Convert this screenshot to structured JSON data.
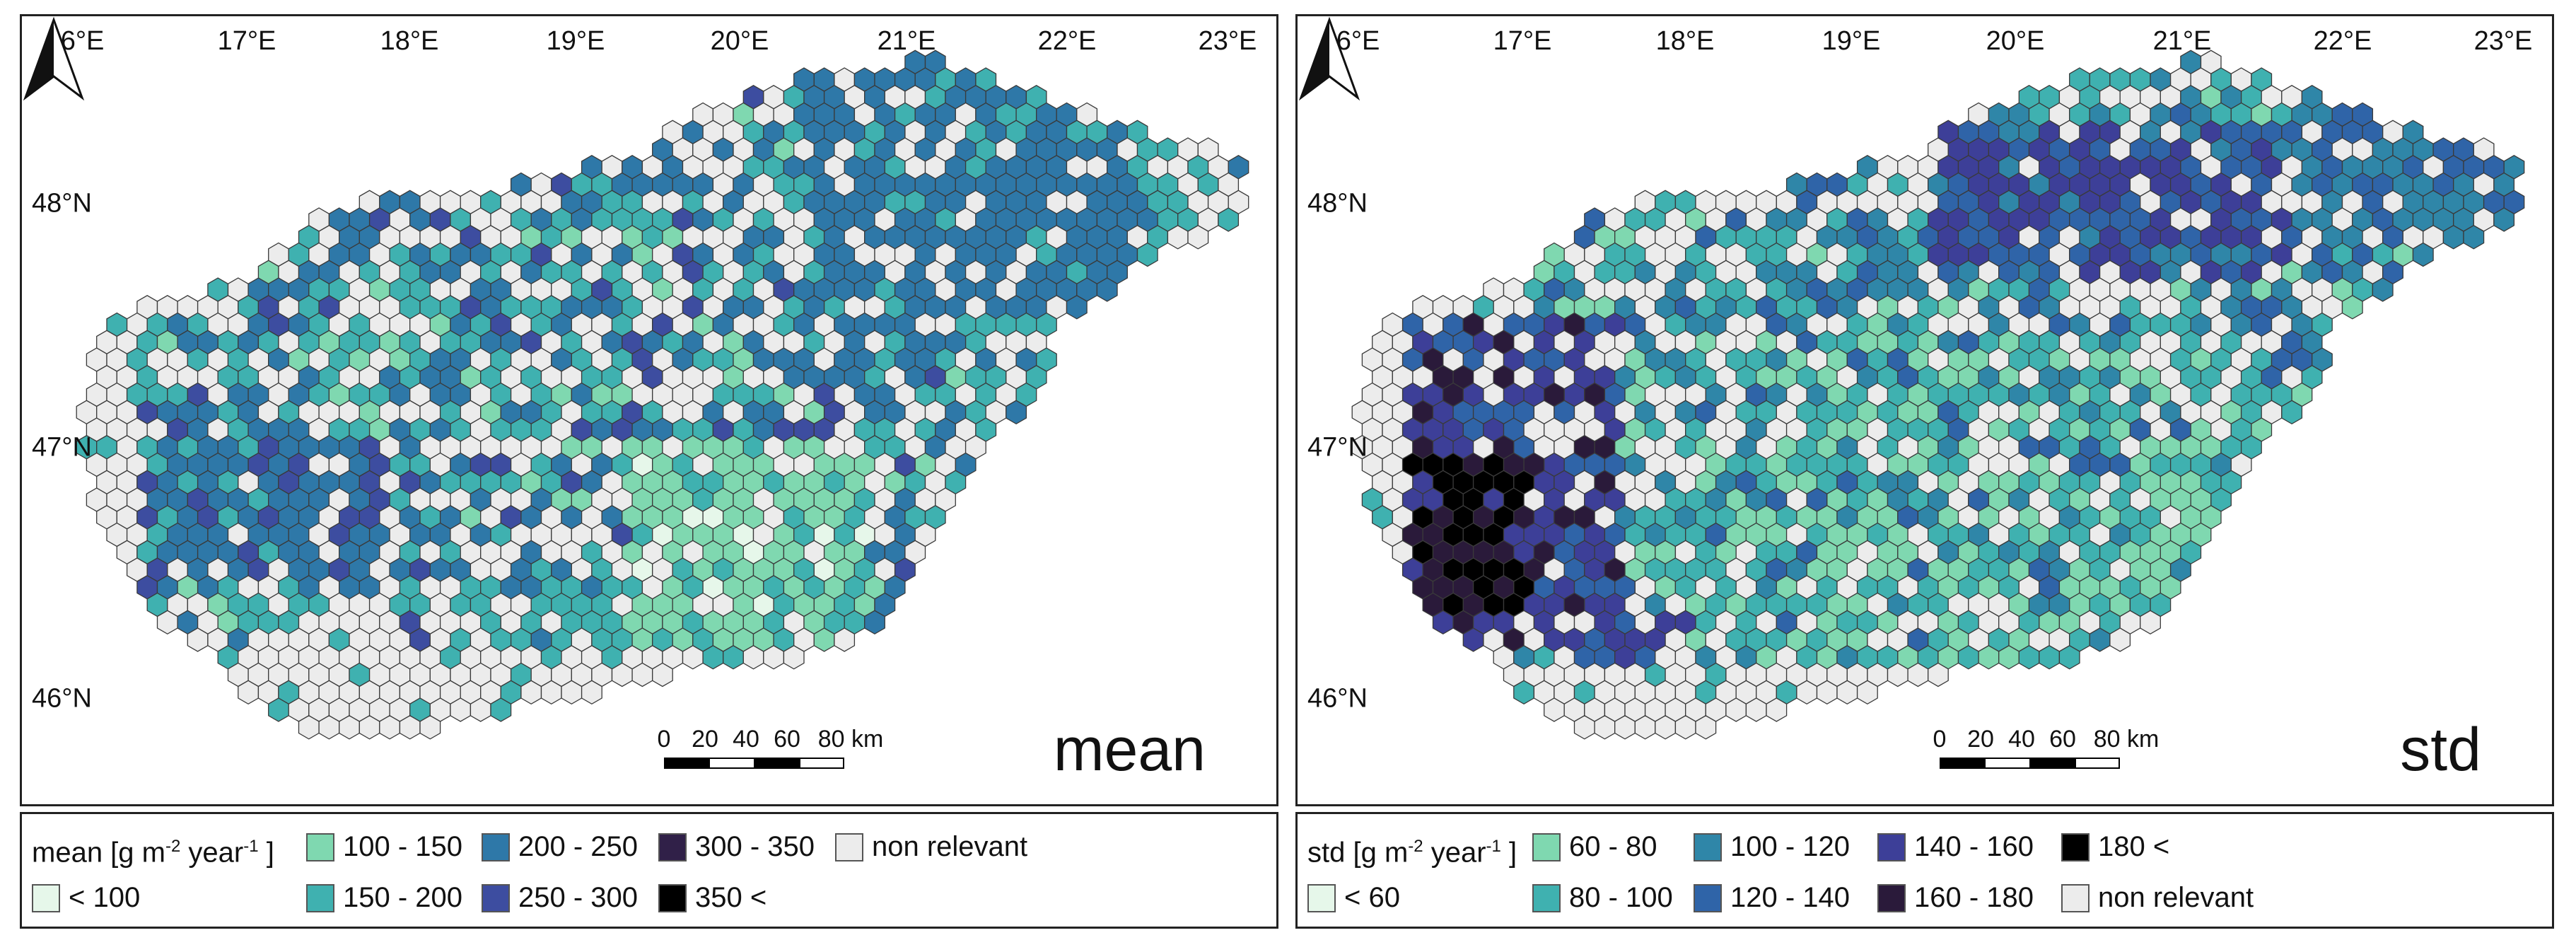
{
  "map": {
    "lon_labels": [
      "16°E",
      "17°E",
      "18°E",
      "19°E",
      "20°E",
      "21°E",
      "22°E",
      "23°E"
    ],
    "lat_labels": [
      "48°N",
      "47°N",
      "46°N"
    ],
    "scale_labels": [
      "0",
      "20",
      "40",
      "60",
      "80 km"
    ]
  },
  "panels": [
    {
      "id": "mean",
      "title": "mean"
    },
    {
      "id": "std",
      "title": "std"
    }
  ],
  "legend_mean": {
    "title_prefix": "mean [g m",
    "title_sup1": "-2",
    "title_mid": " year",
    "title_sup2": "-1",
    "title_suffix": " ]",
    "items": [
      {
        "label": "100 - 150",
        "color": "#7fd8b0"
      },
      {
        "label": "200 - 250",
        "color": "#2e78a8"
      },
      {
        "label": "300 - 350",
        "color": "#302048"
      },
      {
        "label": "non relevant",
        "color": "#ececec"
      },
      {
        "label": "< 100",
        "color": "#e6f7ea"
      },
      {
        "label": "150 - 200",
        "color": "#3fb1b0"
      },
      {
        "label": "250 - 300",
        "color": "#3d4da0"
      },
      {
        "label": "350 <",
        "color": "#000000"
      }
    ]
  },
  "legend_std": {
    "title_prefix": "std [g m",
    "title_sup1": "-2",
    "title_mid": " year",
    "title_sup2": "-1",
    "title_suffix": " ]",
    "items": [
      {
        "label": "60 - 80",
        "color": "#7fd8b0"
      },
      {
        "label": "100 - 120",
        "color": "#2f86a8"
      },
      {
        "label": "140 - 160",
        "color": "#3d3f98"
      },
      {
        "label": "180 <",
        "color": "#000000"
      },
      {
        "label": "< 60",
        "color": "#e6f7ea"
      },
      {
        "label": "80 - 100",
        "color": "#3fb1b0"
      },
      {
        "label": "120 - 140",
        "color": "#2f64a8"
      },
      {
        "label": "160 - 180",
        "color": "#2a1a3a"
      },
      {
        "label": "non relevant",
        "color": "#ececec"
      }
    ]
  }
}
